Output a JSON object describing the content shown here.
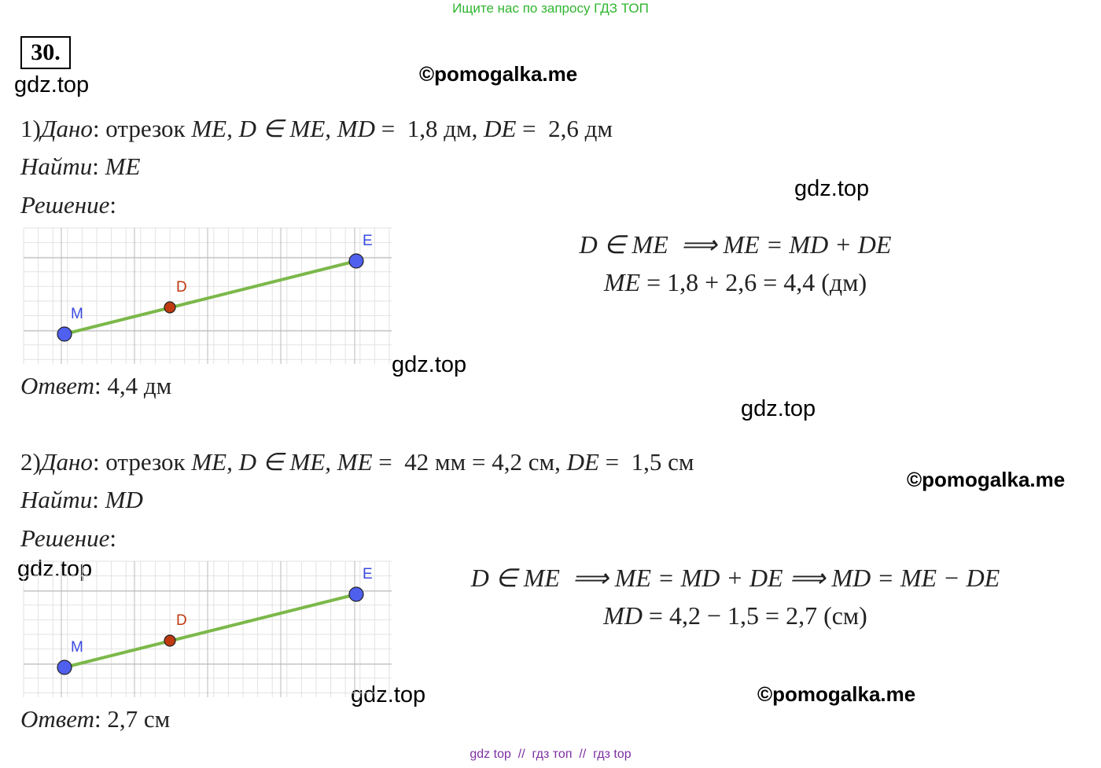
{
  "header": {
    "banner": "Ищите нас по запросу ГДЗ ТОП",
    "number": "30."
  },
  "watermarks": {
    "gdz": [
      "gdz.top",
      "gdz.top",
      "gdz.top",
      "gdz.top",
      "gdz.top",
      "gdz.top"
    ],
    "pomogalka": [
      "©pomogalka.me",
      "©pomogalka.me",
      "©pomogalka.me"
    ]
  },
  "problems": [
    {
      "given": [
        "1)",
        "Дано",
        ": отрезок ",
        "ME, D ∈ ME, MD",
        " =  1,8 дм, ",
        "DE",
        " =  2,6 дм"
      ],
      "find": [
        "Найти",
        ": ",
        "ME"
      ],
      "solution": [
        "Решение",
        ":"
      ],
      "formulas": [
        [
          "D ∈ ME  ⟹ ME = MD + DE"
        ],
        [
          "ME",
          " = 1,8 + 2,6 = 4,4 (дм)"
        ]
      ],
      "answer": [
        "Ответ",
        ": 4,4 дм"
      ],
      "points": [
        "M",
        "D",
        "E"
      ]
    },
    {
      "given": [
        "2)",
        "Дано",
        ": отрезок ",
        "ME, D ∈ ME, ME",
        " =  42 мм = 4,2 см, ",
        "DE",
        " =  1,5 см"
      ],
      "find": [
        "Найти",
        ": ",
        "MD"
      ],
      "solution": [
        "Решение",
        ":"
      ],
      "formulas": [
        [
          "D ∈ ME  ⟹ ME = MD + DE ⟹ MD = ME − DE"
        ],
        [
          "MD",
          " = 4,2 − 1,5 = 2,7 (см)"
        ]
      ],
      "answer": [
        "Ответ",
        ": 2,7 см"
      ],
      "points": [
        "M",
        "D",
        "E"
      ]
    }
  ],
  "footer": "gdz top  //  гдз топ  //  гдз top"
}
